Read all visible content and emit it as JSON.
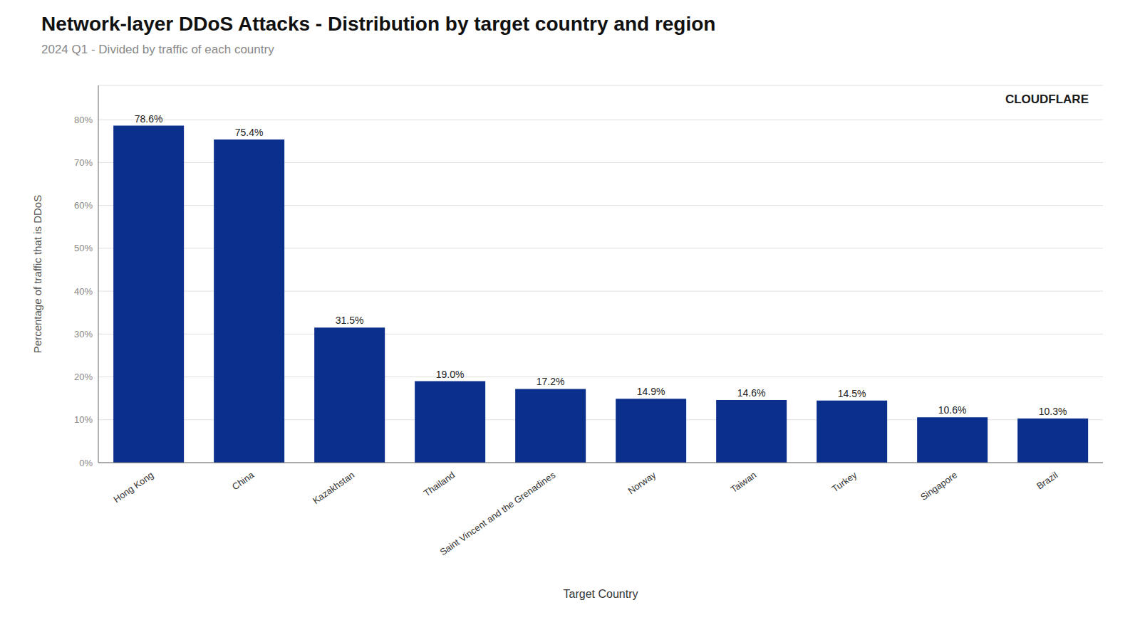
{
  "chart_data": {
    "type": "bar",
    "title": "Network-layer DDoS Attacks - Distribution by target country and region",
    "subtitle": "2024 Q1 - Divided by traffic of each country",
    "xlabel": "Target Country",
    "ylabel": "Percentage of traffic that is DDoS",
    "categories": [
      "Hong Kong",
      "China",
      "Kazakhstan",
      "Thailand",
      "Saint Vincent and the Grenadines",
      "Norway",
      "Taiwan",
      "Turkey",
      "Singapore",
      "Brazil"
    ],
    "values": [
      78.6,
      75.4,
      31.5,
      19.0,
      17.2,
      14.9,
      14.6,
      14.5,
      10.6,
      10.3
    ],
    "value_labels": [
      "78.6%",
      "75.4%",
      "31.5%",
      "19.0%",
      "17.2%",
      "14.9%",
      "14.6%",
      "14.5%",
      "10.6%",
      "10.3%"
    ],
    "data_labels": true,
    "color": "#0a2f8c",
    "ylim": [
      0,
      88
    ],
    "yticks": [
      {
        "value": 0,
        "label": "0%"
      },
      {
        "value": 10,
        "label": "10%"
      },
      {
        "value": 20,
        "label": "20%"
      },
      {
        "value": 30,
        "label": "30%"
      },
      {
        "value": 40,
        "label": "40%"
      },
      {
        "value": 50,
        "label": "50%"
      },
      {
        "value": 60,
        "label": "60%"
      },
      {
        "value": 70,
        "label": "70%"
      },
      {
        "value": 80,
        "label": "80%"
      }
    ],
    "grid": true,
    "annotations": [
      "CLOUDFLARE"
    ]
  }
}
